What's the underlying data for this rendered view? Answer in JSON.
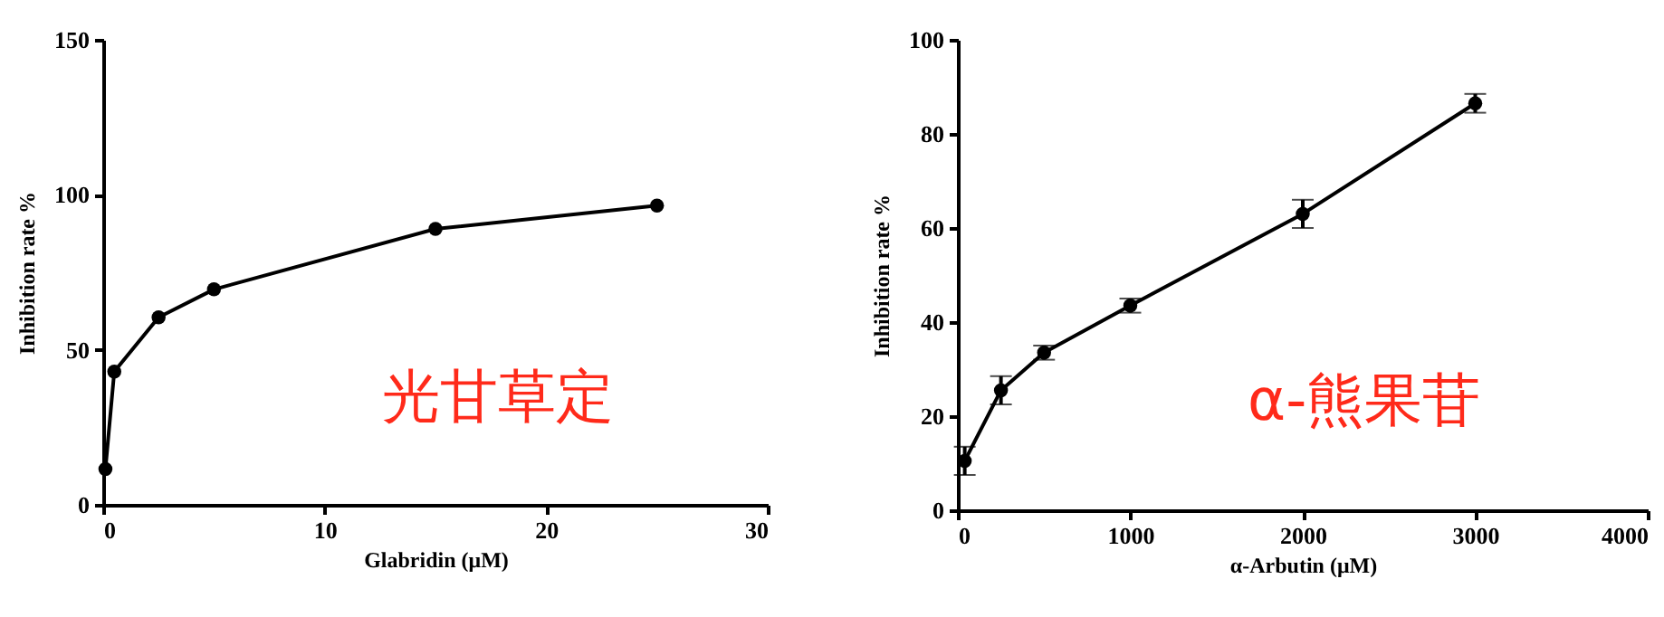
{
  "chart_data": [
    {
      "type": "line",
      "xlabel": "Glabridin (μM)",
      "ylabel": "Inhibition rate %",
      "annotations": [
        "光甘草定"
      ],
      "x": [
        0.1,
        0.5,
        2.5,
        5,
        15,
        25
      ],
      "series": [
        {
          "color": "#000000",
          "values": [
            11.5,
            43,
            60.5,
            69.5,
            89,
            96.5
          ]
        }
      ],
      "xlim": [
        0,
        30
      ],
      "xticks": [
        0,
        10,
        20,
        30
      ],
      "ylim": [
        0,
        150
      ],
      "yticks": [
        0,
        50,
        100,
        150
      ],
      "marker": "circle",
      "grid": false
    },
    {
      "type": "line",
      "xlabel": "α-Arbutin (μM)",
      "ylabel": "Inhibition rate %",
      "annotations": [
        "α-熊果苷"
      ],
      "x": [
        40,
        250,
        500,
        1000,
        2000,
        3000
      ],
      "series": [
        {
          "color": "#000000",
          "values": [
            10.5,
            25.5,
            33.5,
            43.5,
            63,
            86.5
          ],
          "errors": [
            3,
            3,
            1.5,
            1.5,
            3,
            2
          ]
        }
      ],
      "xlim": [
        0,
        4000
      ],
      "xticks": [
        0,
        1000,
        2000,
        3000,
        4000
      ],
      "ylim": [
        0,
        100
      ],
      "yticks": [
        0,
        20,
        40,
        60,
        80,
        100
      ],
      "marker": "circle",
      "grid": false
    }
  ]
}
